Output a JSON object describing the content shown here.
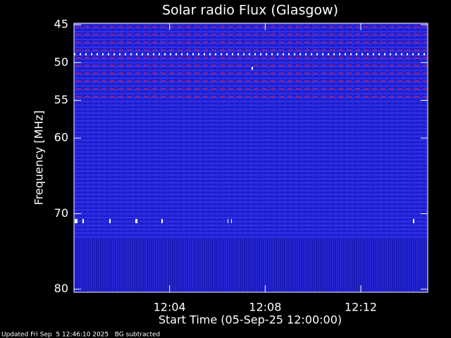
{
  "chart_data": {
    "type": "spectrogram",
    "title": "Solar radio Flux (Glasgow)",
    "y_label": "Frequency [MHz]",
    "x_label": "Start Time (05-Sep-25 12:00:00)",
    "footer": "Updated Fri Sep  5 12:46:10 2025   BG subtracted",
    "ylim": [
      80.4,
      44.8
    ],
    "yticks": [
      45,
      50,
      55,
      60,
      70,
      80
    ],
    "xlim": [
      0,
      14.8
    ],
    "xticks": [
      {
        "value": 4,
        "label": "12:04"
      },
      {
        "value": 8,
        "label": "12:08"
      },
      {
        "value": 12,
        "label": "12:12"
      }
    ]
  }
}
